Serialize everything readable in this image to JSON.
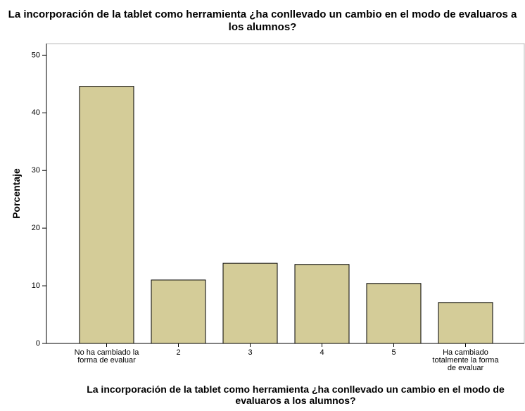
{
  "chart_data": {
    "type": "bar",
    "title": "La incorporación de la tablet como herramienta ¿ha conllevado un cambio en el modo de evaluaros a los alumnos?",
    "x_label": "La incorporación de la tablet como herramienta ¿ha conllevado un cambio en el modo de evaluaros a los alumnos?",
    "y_label": "Porcentaje",
    "categories": [
      "No ha cambiado la forma de evaluar",
      "2",
      "3",
      "4",
      "5",
      "Ha cambiado totalmente la forma de evaluar"
    ],
    "values": [
      44.6,
      11.0,
      13.9,
      13.7,
      10.4,
      7.1
    ],
    "color": "#d4cc98",
    "ylim": [
      0,
      52
    ],
    "yticks": [
      0,
      10,
      20,
      30,
      40,
      50
    ],
    "grid": false
  }
}
